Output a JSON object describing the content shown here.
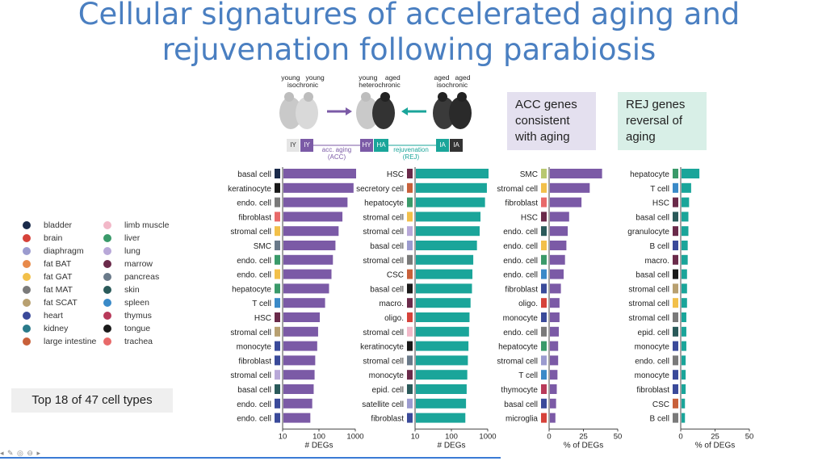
{
  "title": {
    "line1": "Cellular signatures of accelerated aging and",
    "line2": "rejuvenation following parabiosis"
  },
  "diagram": {
    "young_isochronic": [
      "young",
      "young",
      "isochronic"
    ],
    "heterochronic": [
      "young",
      "aged",
      "heterochronic"
    ],
    "aged_isochronic": [
      "aged",
      "aged",
      "isochronic"
    ],
    "tags": [
      "IY",
      "IY",
      "HY",
      "HA",
      "IA",
      "IA"
    ],
    "acc_label": [
      "acc. aging",
      "(ACC)"
    ],
    "rej_label": [
      "rejuvenation",
      "(REJ)"
    ],
    "colors": {
      "purple": "#7b5aa6",
      "teal": "#1aa59a",
      "dark": "#333333",
      "grey": "#d0d0d0"
    }
  },
  "boxes": {
    "acc": [
      "ACC genes",
      "consistent",
      "with aging"
    ],
    "rej": [
      "REJ genes",
      "reversal of",
      "aging"
    ]
  },
  "top_label": "Top 18 of 47 cell types",
  "legend": [
    {
      "name": "bladder",
      "color": "#1a2a4a"
    },
    {
      "name": "brain",
      "color": "#d6423a"
    },
    {
      "name": "diaphragm",
      "color": "#9b9bcf"
    },
    {
      "name": "fat BAT",
      "color": "#e88a4a"
    },
    {
      "name": "fat GAT",
      "color": "#f2c04a"
    },
    {
      "name": "fat MAT",
      "color": "#7a7a7a"
    },
    {
      "name": "fat SCAT",
      "color": "#b8a070"
    },
    {
      "name": "heart",
      "color": "#3a4a9a"
    },
    {
      "name": "kidney",
      "color": "#2a7a8a"
    },
    {
      "name": "large intestine",
      "color": "#c8603a"
    },
    {
      "name": "limb muscle",
      "color": "#f2b8c8"
    },
    {
      "name": "liver",
      "color": "#3a9a6a"
    },
    {
      "name": "lung",
      "color": "#b8a8d8"
    },
    {
      "name": "marrow",
      "color": "#6a2a4a"
    },
    {
      "name": "pancreas",
      "color": "#6a7a8a"
    },
    {
      "name": "skin",
      "color": "#2a5a5a"
    },
    {
      "name": "spleen",
      "color": "#3a8ac8"
    },
    {
      "name": "thymus",
      "color": "#b83a5a"
    },
    {
      "name": "tongue",
      "color": "#1a1a1a"
    },
    {
      "name": "trachea",
      "color": "#e86a6a"
    }
  ],
  "chart_data": [
    {
      "type": "bar",
      "orientation": "horizontal",
      "title": "ACC # DEGs",
      "xlabel": "# DEGs",
      "xscale": "log",
      "xlim": [
        10,
        1000
      ],
      "xticks": [
        "10",
        "100",
        "1000"
      ],
      "bar_color": "#7b5aa6",
      "categories": [
        "basal cell",
        "keratinocyte",
        "endo. cell",
        "fibroblast",
        "stromal cell",
        "SMC",
        "endo. cell",
        "endo. cell",
        "hepatocyte",
        "T cell",
        "HSC",
        "stromal cell",
        "monocyte",
        "fibroblast",
        "stromal cell",
        "basal cell",
        "endo. cell",
        "endo. cell"
      ],
      "swatches": [
        "#1a2a4a",
        "#1a1a1a",
        "#7a7a7a",
        "#e86a6a",
        "#f2c04a",
        "#6a7a8a",
        "#3a9a6a",
        "#f2c04a",
        "#3a9a6a",
        "#3a8ac8",
        "#6a2a4a",
        "#b8a070",
        "#3a4a9a",
        "#3a4a9a",
        "#b8a8d8",
        "#2a5a5a",
        "#3a4a9a",
        "#3a4a9a"
      ],
      "values": [
        1000,
        850,
        580,
        420,
        330,
        270,
        230,
        210,
        180,
        140,
        100,
        90,
        85,
        75,
        72,
        68,
        62,
        55
      ]
    },
    {
      "type": "bar",
      "orientation": "horizontal",
      "title": "REJ # DEGs",
      "xlabel": "# DEGs",
      "xscale": "log",
      "xlim": [
        10,
        1000
      ],
      "xticks": [
        "10",
        "100",
        "1000"
      ],
      "bar_color": "#1aa59a",
      "categories": [
        "HSC",
        "secretory cell",
        "hepatocyte",
        "stromal cell",
        "stromal cell",
        "basal cell",
        "stromal cell",
        "CSC",
        "basal cell",
        "macro.",
        "oligo.",
        "stromal cell",
        "keratinocyte",
        "stromal cell",
        "monocyte",
        "epid. cell",
        "satellite cell",
        "fibroblast"
      ],
      "swatches": [
        "#6a2a4a",
        "#c8603a",
        "#3a9a6a",
        "#f2c04a",
        "#b8a8d8",
        "#9b9bcf",
        "#7a7a7a",
        "#c8603a",
        "#1a1a1a",
        "#6a2a4a",
        "#d6423a",
        "#f2b8c8",
        "#1a1a1a",
        "#6a7a8a",
        "#6a2a4a",
        "#2a5a5a",
        "#9b9bcf",
        "#3a4a9a"
      ],
      "values": [
        1000,
        900,
        800,
        600,
        570,
        480,
        380,
        360,
        350,
        320,
        300,
        290,
        280,
        270,
        260,
        250,
        240,
        230
      ]
    },
    {
      "type": "bar",
      "orientation": "horizontal",
      "title": "ACC % of DEGs",
      "xlabel": "% of DEGs",
      "xlim": [
        0,
        50
      ],
      "xticks": [
        "0",
        "25",
        "50"
      ],
      "bar_color": "#7b5aa6",
      "categories": [
        "SMC",
        "stromal cell",
        "fibroblast",
        "HSC",
        "endo. cell",
        "endo. cell",
        "endo. cell",
        "endo. cell",
        "fibroblast",
        "oligo.",
        "monocyte",
        "endo. cell",
        "hepatocyte",
        "stromal cell",
        "T cell",
        "thymocyte",
        "basal cell",
        "microglia"
      ],
      "swatches": [
        "#b8c870",
        "#f2c04a",
        "#e86a6a",
        "#6a2a4a",
        "#2a5a5a",
        "#f2c04a",
        "#3a9a6a",
        "#3a8ac8",
        "#3a4a9a",
        "#d6423a",
        "#3a4a9a",
        "#7a7a7a",
        "#3a9a6a",
        "#9b9bcf",
        "#3a8ac8",
        "#b83a5a",
        "#3a4a9a",
        "#d6423a"
      ],
      "values": [
        38,
        29,
        23,
        14,
        13,
        12,
        11,
        10,
        8,
        7,
        7,
        6.5,
        6,
        6,
        5.5,
        5,
        4.5,
        4
      ]
    },
    {
      "type": "bar",
      "orientation": "horizontal",
      "title": "REJ % of DEGs",
      "xlabel": "% of DEGs",
      "xlim": [
        0,
        50
      ],
      "xticks": [
        "0",
        "25",
        "50"
      ],
      "bar_color": "#1aa59a",
      "categories": [
        "hepatocyte",
        "T cell",
        "HSC",
        "basal cell",
        "granulocyte",
        "B cell",
        "macro.",
        "basal cell",
        "stromal cell",
        "stromal cell",
        "stromal cell",
        "epid. cell",
        "monocyte",
        "endo. cell",
        "monocyte",
        "fibroblast",
        "CSC",
        "B cell"
      ],
      "swatches": [
        "#3a9a6a",
        "#3a8ac8",
        "#6a2a4a",
        "#2a5a5a",
        "#6a2a4a",
        "#3a4a9a",
        "#6a2a4a",
        "#1a1a1a",
        "#b8a070",
        "#f2c04a",
        "#7a7a7a",
        "#2a5a5a",
        "#3a4a9a",
        "#7a7a7a",
        "#3a4a9a",
        "#3a4a9a",
        "#c8603a",
        "#7a7a7a"
      ],
      "values": [
        13,
        7,
        5.5,
        5,
        5,
        4.5,
        4.5,
        4,
        4,
        4,
        3.5,
        3.5,
        3.5,
        3,
        3,
        3,
        2.5,
        2.5
      ]
    }
  ]
}
